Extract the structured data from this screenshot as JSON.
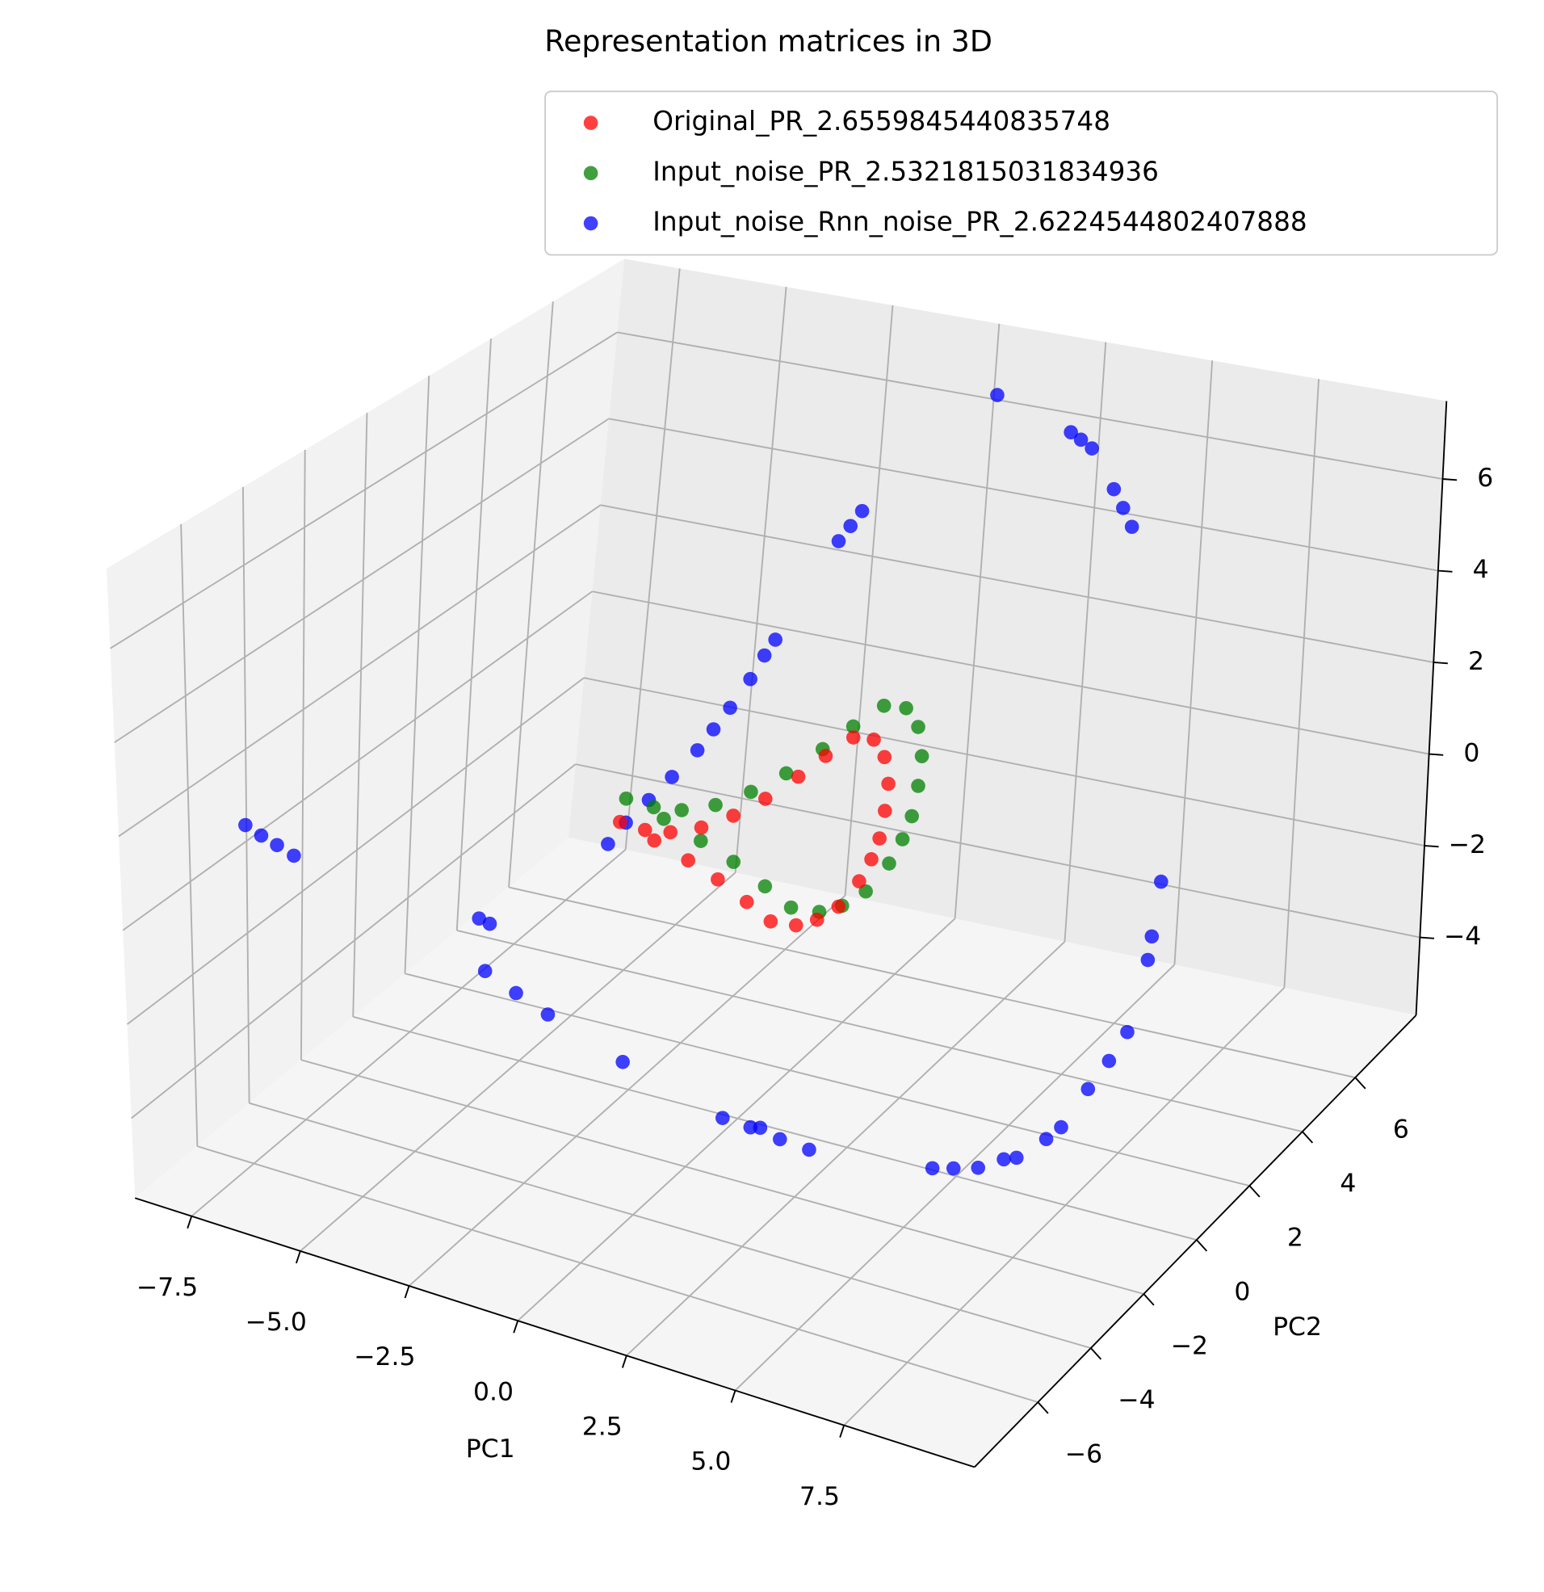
{
  "chart_data": {
    "type": "scatter3d",
    "title": "Representation matrices in 3D",
    "xlabel": "PC1",
    "ylabel": "PC2",
    "xlim": [
      -8.8,
      10.5
    ],
    "ylim": [
      -8.4,
      8.3
    ],
    "zlim": [
      -5.7,
      7.7
    ],
    "xticks": [
      {
        "value": -7.5,
        "label": "−7.5"
      },
      {
        "value": -5,
        "label": "−5.0"
      },
      {
        "value": -2.5,
        "label": "−2.5"
      },
      {
        "value": 0,
        "label": "0.0"
      },
      2.5,
      {
        "value": 5,
        "label": "5.0"
      },
      7.5
    ],
    "yticks": [
      {
        "value": -6,
        "label": "−6"
      },
      {
        "value": -4,
        "label": "−4"
      },
      {
        "value": -2,
        "label": "−2"
      },
      0,
      2,
      4,
      6
    ],
    "zticks": [
      {
        "value": -4,
        "label": "−4"
      },
      {
        "value": -2,
        "label": "−2"
      },
      0,
      2,
      4,
      6
    ],
    "grid": true,
    "legend": "upper right",
    "series": [
      {
        "name": "Original_PR_2.6559845440835748",
        "color": "#ff0000",
        "x": [
          -2.5,
          -1.88,
          -1.33,
          -0.89,
          -0.59,
          -0.35,
          -0.26,
          -0.24,
          -0.21,
          0.21,
          0.75,
          1.42,
          1.96,
          2.47,
          2.83,
          3.09,
          3.22,
          3.12,
          2.87,
          2.34,
          1.5,
          0.55,
          -0.39,
          -1.48
        ],
        "y": [
          -0.38,
          -0.44,
          -0.38,
          0.04,
          0.71,
          1.47,
          2.49,
          3.42,
          4.35,
          4.43,
          3.99,
          3.11,
          2.17,
          1.21,
          0.38,
          -0.44,
          -1.36,
          -1.96,
          -2.32,
          -2.41,
          -1.98,
          -1.56,
          -1.18,
          -0.72
        ],
        "z": [
          0.3,
          0.3,
          0.35,
          0.35,
          0.35,
          0.4,
          0.4,
          0.4,
          0.35,
          0.35,
          0.3,
          0.3,
          0.3,
          0.3,
          0.35,
          0.35,
          0.3,
          0.3,
          0.3,
          0.3,
          0.3,
          0.35,
          0.35,
          0.3
        ]
      },
      {
        "name": "Input_noise_PR_2.5321815031834936",
        "color": "#008000",
        "x": [
          -2.4,
          -1.72,
          -1.11,
          -0.63,
          -0.3,
          -0.04,
          0.06,
          0.09,
          0.12,
          0.58,
          1.18,
          1.91,
          2.51,
          3.07,
          3.46,
          3.75,
          3.89,
          3.78,
          3.51,
          2.92,
          2.0,
          0.96,
          -0.08,
          -1.28
        ],
        "y": [
          -0.32,
          -0.38,
          -0.32,
          0.14,
          0.88,
          1.72,
          2.84,
          3.86,
          4.89,
          4.97,
          4.49,
          3.52,
          2.49,
          1.43,
          0.52,
          -0.38,
          -1.4,
          -2.06,
          -2.45,
          -2.55,
          -2.08,
          -1.62,
          -1.2,
          -0.69
        ],
        "z": [
          0.8,
          0.8,
          0.85,
          0.85,
          0.85,
          0.9,
          0.9,
          0.9,
          0.85,
          0.85,
          0.8,
          0.8,
          0.8,
          0.8,
          0.85,
          0.85,
          0.8,
          0.8,
          0.8,
          0.8,
          0.8,
          0.85,
          0.85,
          0.8
        ]
      },
      {
        "name": "Input_noise_Rnn_noise_PR_2.6224544802407888",
        "color": "#0000ff",
        "x": [
          1.1,
          2.72,
          3.1,
          3.53,
          4.23,
          4.5,
          4.77,
          -1.33,
          -1.38,
          -1.43,
          -1.87,
          -1.97,
          -2.08,
          -2.18,
          -2.25,
          -2.33,
          -2.58,
          -2.8,
          -3.0,
          -3.15,
          -8.1,
          -7.7,
          -7.3,
          -6.87,
          -4.15,
          -3.85,
          -3.59,
          -2.86,
          -2.26,
          -0.64,
          1.2,
          1.62,
          1.8,
          2.12,
          2.59,
          5.02,
          5.4,
          5.83,
          6.25,
          6.45,
          7.12,
          7.41,
          7.8,
          8.1,
          8.38,
          7.95,
          8.0,
          8.13
        ],
        "y": [
          6.8,
          7.0,
          6.8,
          6.56,
          6.35,
          6.3,
          6.23,
          6.0,
          5.7,
          5.39,
          4.0,
          3.79,
          3.49,
          2.96,
          2.5,
          2.07,
          1.57,
          1.1,
          0.6,
          0.2,
          -5.08,
          -5.13,
          -5.18,
          -5.24,
          -2.87,
          -2.95,
          -3.54,
          -3.57,
          -3.37,
          -3.22,
          -2.52,
          -2.17,
          -2.1,
          -1.89,
          -1.57,
          -0.92,
          -0.75,
          -0.53,
          -0.25,
          -0.1,
          -0.07,
          0.02,
          0.4,
          0.7,
          0.93,
          2.34,
          2.4,
          2.52
        ],
        "z": [
          7.0,
          6.36,
          6.36,
          6.36,
          5.69,
          5.35,
          5.02,
          4.35,
          4.15,
          3.95,
          2.34,
          2.07,
          1.67,
          1.27,
          1.0,
          0.73,
          0.33,
          0.0,
          -0.3,
          -0.61,
          1.0,
          0.9,
          0.82,
          0.73,
          -1.01,
          -1.01,
          -1.68,
          -1.95,
          -2.35,
          -3.02,
          -4.09,
          -4.36,
          -4.36,
          -4.63,
          -4.9,
          -5.03,
          -5.03,
          -5.03,
          -4.9,
          -4.9,
          -4.36,
          -4.09,
          -3.4,
          -2.9,
          -2.35,
          -1.68,
          -1.2,
          -0.07
        ]
      }
    ]
  }
}
